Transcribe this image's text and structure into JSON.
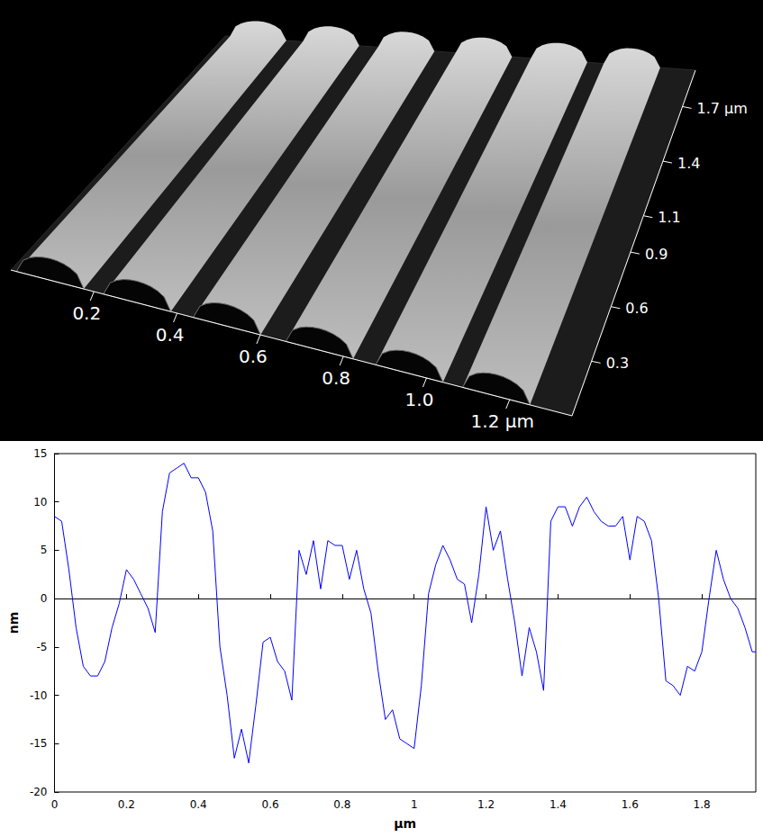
{
  "chart_data": [
    {
      "type": "surface",
      "xlim": [
        0,
        1.35
      ],
      "xticks": [
        0.2,
        0.4,
        0.6,
        0.8,
        {
          "value": 1.0,
          "label": "1.0"
        },
        {
          "value": 1.2,
          "label": "1.2 µm"
        }
      ],
      "ylim": [
        0,
        1.9
      ],
      "yticks": [
        0.3,
        0.6,
        0.9,
        1.1,
        1.4,
        {
          "value": 1.7,
          "label": "1.7 µm"
        }
      ]
    },
    {
      "type": "line",
      "color": "#0000ff",
      "xlabel": "µm",
      "ylabel": "nm",
      "grid": false,
      "xlim": [
        0,
        1.95
      ],
      "xticks": [
        0,
        0.2,
        0.4,
        0.6,
        0.8,
        1,
        1.2,
        1.4,
        1.6,
        1.8
      ],
      "ylim": [
        -20,
        15
      ],
      "yticks": [
        -20,
        -15,
        -10,
        -5,
        0,
        5,
        10,
        15
      ],
      "x": [
        0,
        0.02,
        0.04,
        0.06,
        0.08,
        0.1,
        0.12,
        0.14,
        0.16,
        0.18,
        0.2,
        0.22,
        0.24,
        0.26,
        0.28,
        0.3,
        0.32,
        0.34,
        0.36,
        0.38,
        0.4,
        0.42,
        0.44,
        0.46,
        0.48,
        0.5,
        0.52,
        0.54,
        0.56,
        0.58,
        0.6,
        0.62,
        0.64,
        0.66,
        0.68,
        0.7,
        0.72,
        0.74,
        0.76,
        0.78,
        0.8,
        0.82,
        0.84,
        0.86,
        0.88,
        0.9,
        0.92,
        0.94,
        0.96,
        0.98,
        1.0,
        1.02,
        1.04,
        1.06,
        1.08,
        1.1,
        1.12,
        1.14,
        1.16,
        1.18,
        1.2,
        1.22,
        1.24,
        1.26,
        1.28,
        1.3,
        1.32,
        1.34,
        1.36,
        1.38,
        1.4,
        1.42,
        1.44,
        1.46,
        1.48,
        1.5,
        1.52,
        1.54,
        1.56,
        1.58,
        1.6,
        1.62,
        1.64,
        1.66,
        1.68,
        1.7,
        1.72,
        1.74,
        1.76,
        1.78,
        1.8,
        1.82,
        1.84,
        1.86,
        1.88,
        1.9,
        1.92,
        1.94,
        1.95
      ],
      "values": [
        8.5,
        8,
        3,
        -3,
        -7,
        -8,
        -8,
        -6.5,
        -3,
        -0.5,
        3,
        2,
        0.5,
        -1,
        -3.5,
        9,
        13,
        13.5,
        14,
        12.5,
        12.5,
        11,
        7,
        -5,
        -10,
        -16.5,
        -13.5,
        -17,
        -11,
        -4.5,
        -4,
        -6.5,
        -7.5,
        -10.5,
        5,
        2.5,
        6,
        1,
        6,
        5.5,
        5.5,
        2,
        5,
        1,
        -1.5,
        -7.5,
        -12.5,
        -11.5,
        -14.5,
        -15,
        -15.5,
        -9,
        0.5,
        3.5,
        5.5,
        4,
        2,
        1.5,
        -2.5,
        2.5,
        9.5,
        5,
        7,
        2,
        -2.5,
        -8,
        -3,
        -5.5,
        -9.5,
        8,
        9.5,
        9.5,
        7.5,
        9.5,
        10.5,
        9,
        8,
        7.5,
        7.5,
        8.5,
        4,
        8.5,
        8,
        6,
        0,
        -8.5,
        -9,
        -10,
        -7,
        -7.5,
        -5.5,
        0,
        5,
        2,
        0,
        -1,
        -3,
        -5.5,
        -5.5
      ]
    }
  ]
}
